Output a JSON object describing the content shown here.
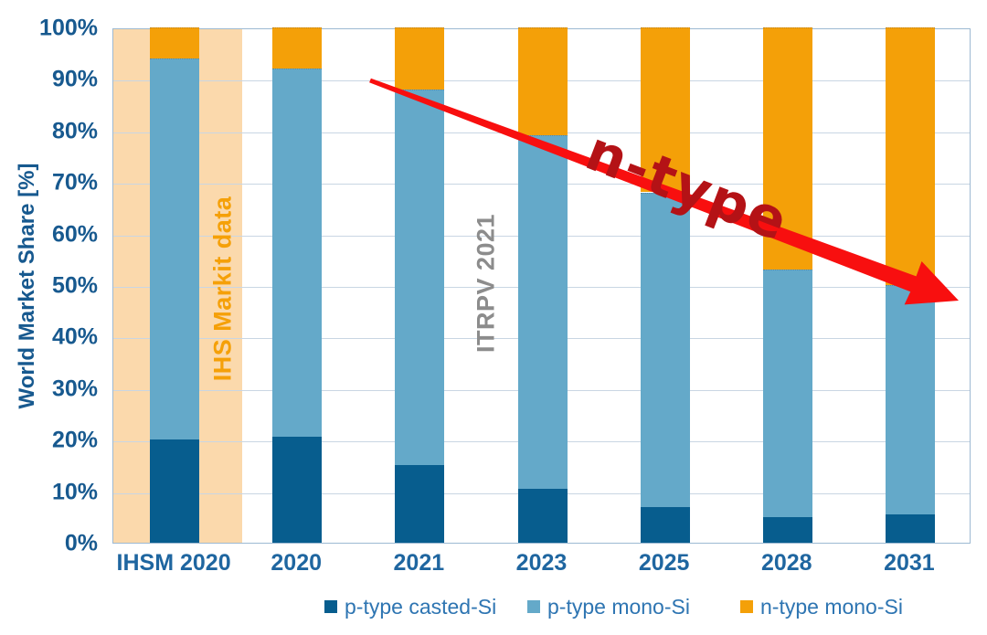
{
  "chart_data": {
    "type": "bar",
    "stacked": true,
    "orientation": "vertical",
    "ylabel": "World Market Share [%]",
    "ylim": [
      0,
      100
    ],
    "yticks": [
      0,
      10,
      20,
      30,
      40,
      50,
      60,
      70,
      80,
      90,
      100
    ],
    "ytick_suffix": "%",
    "grid": true,
    "legend_position": "bottom",
    "categories": [
      "IHSM 2020",
      "2020",
      "2021",
      "2023",
      "2025",
      "2028",
      "2031"
    ],
    "series": [
      {
        "name": "p-type casted-Si",
        "color": "#075D8E",
        "values": [
          20,
          20.5,
          15,
          10.5,
          7,
          5,
          5.5
        ]
      },
      {
        "name": "p-type mono-Si",
        "color": "#64A9C9",
        "values": [
          74,
          71.5,
          73,
          68.5,
          61,
          48,
          44.5
        ]
      },
      {
        "name": "n-type mono-Si",
        "color": "#F4A008",
        "values": [
          6,
          8,
          12,
          21,
          32,
          47,
          50
        ]
      }
    ],
    "highlight_band": {
      "category": "IHSM 2020",
      "color": "#FBD9AC",
      "label": "IHS Markit data",
      "label_color": "#F5A008"
    },
    "annotations": [
      {
        "text": "IHS Markit data",
        "color": "#F5A008",
        "rotation": -90
      },
      {
        "text": "ITRPV 2021",
        "color": "#8C8C8C",
        "rotation": -90
      },
      {
        "text": "n-type",
        "color": "#B41216",
        "rotation": 21
      }
    ],
    "trend_arrow": {
      "color": "#F80F0F",
      "description": "red arrow sloping down from ~90% at 2021 to ~47% at 2031 indicating n-type growth"
    }
  }
}
